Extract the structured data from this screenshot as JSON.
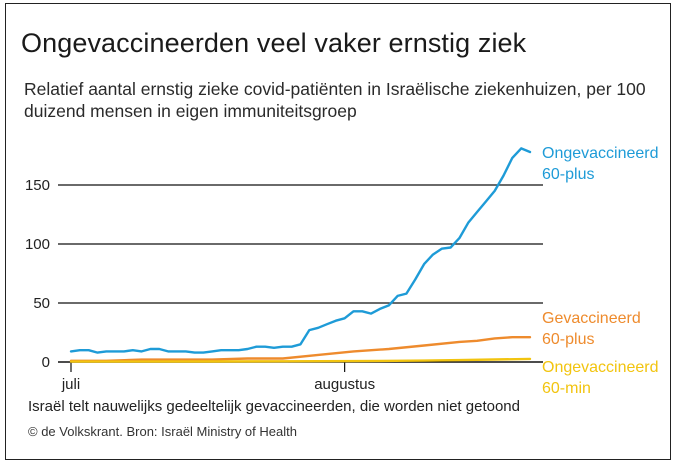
{
  "title": "Ongevaccineerden veel vaker ernstig ziek",
  "subtitle": "Relatief aantal ernstig zieke covid-patiënten in Israëlische ziekenhuizen, per 100 duizend mensen in eigen immuniteitsgroep",
  "note": "Israël telt nauwelijks gedeeltelijk gevaccineerden, die worden niet getoond",
  "source": "© de Volkskrant. Bron: Israël Ministry of Health",
  "chart_data": {
    "type": "line",
    "xlabel": "",
    "ylabel": "",
    "ylim": [
      0,
      190
    ],
    "yticks": [
      0,
      50,
      100,
      150
    ],
    "ytick_labels": [
      "0",
      "50",
      "100",
      "150"
    ],
    "x_tick_labels": [
      {
        "label": "juli",
        "x": 0
      },
      {
        "label": "augustus",
        "x": 31
      }
    ],
    "grid": true,
    "series": [
      {
        "name_lines": [
          "Ongevaccineerd",
          "60-plus"
        ],
        "color": "#1e9bd7",
        "x": [
          0,
          1,
          2,
          3,
          4,
          5,
          6,
          7,
          8,
          9,
          10,
          11,
          12,
          13,
          14,
          15,
          16,
          17,
          18,
          19,
          20,
          21,
          22,
          23,
          24,
          25,
          26,
          27,
          28,
          29,
          30,
          31,
          32,
          33,
          34,
          35,
          36,
          37,
          38,
          39,
          40,
          41,
          42,
          43,
          44,
          45,
          46,
          47,
          48,
          49,
          50,
          51,
          52
        ],
        "values": [
          9,
          10,
          10,
          8,
          9,
          9,
          9,
          10,
          9,
          11,
          11,
          9,
          9,
          9,
          8,
          8,
          9,
          10,
          10,
          10,
          11,
          13,
          13,
          12,
          13,
          13,
          15,
          27,
          29,
          32,
          35,
          37,
          43,
          43,
          41,
          45,
          48,
          56,
          58,
          70,
          83,
          91,
          96,
          97,
          105,
          118,
          127,
          136,
          145,
          158,
          173,
          181,
          178
        ]
      },
      {
        "name_lines": [
          "Gevaccineerd",
          "60-plus"
        ],
        "color": "#ee8b2d",
        "x": [
          0,
          4,
          8,
          12,
          16,
          20,
          24,
          28,
          32,
          36,
          40,
          44,
          46,
          48,
          50,
          52
        ],
        "values": [
          1,
          1,
          2,
          2,
          2,
          3,
          3,
          6,
          9,
          11,
          14,
          17,
          18,
          20,
          21,
          21
        ]
      },
      {
        "name_lines": [
          "Ongevaccineerd",
          "60-min"
        ],
        "color": "#f2c40f",
        "x": [
          0,
          8,
          16,
          24,
          32,
          40,
          44,
          48,
          52
        ],
        "values": [
          0.3,
          0.3,
          0.4,
          0.6,
          0.8,
          1.2,
          1.6,
          2.1,
          2.6
        ]
      }
    ]
  }
}
